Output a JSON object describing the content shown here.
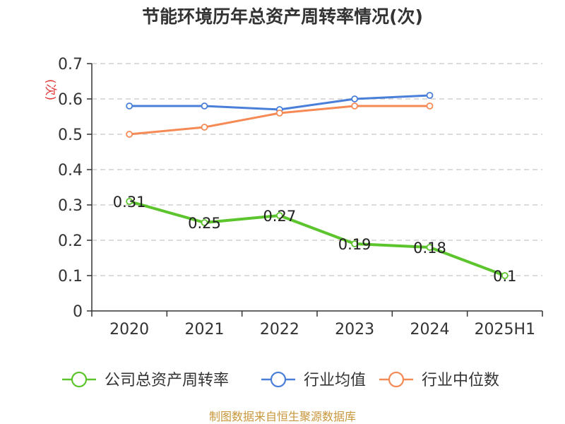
{
  "title": "节能环境历年总资产周转率情况(次)",
  "source": "制图数据来自恒生聚源数据库",
  "chart_data": {
    "type": "line",
    "title": "节能环境历年总资产周转率情况(次)",
    "ylabel": "(次)",
    "xlabel": "",
    "categories": [
      "2020",
      "2021",
      "2022",
      "2023",
      "2024",
      "2025H1"
    ],
    "ylim": [
      0,
      0.7
    ],
    "yticks": [
      "0",
      "0.1",
      "0.2",
      "0.3",
      "0.4",
      "0.5",
      "0.6",
      "0.7"
    ],
    "ytick_values": [
      0,
      0.1,
      0.2,
      0.3,
      0.4,
      0.5,
      0.6,
      0.7
    ],
    "grid": true,
    "legend_position": "bottom",
    "series": [
      {
        "name": "公司总资产周转率",
        "color": "#5cc42c",
        "values": [
          0.31,
          0.25,
          0.27,
          0.19,
          0.18,
          0.1
        ],
        "labels": [
          "0.31",
          "0.25",
          "0.27",
          "0.19",
          "0.18",
          "0.1"
        ]
      },
      {
        "name": "行业均值",
        "color": "#4a7fd9",
        "values": [
          0.58,
          0.58,
          0.57,
          0.6,
          0.61,
          null
        ]
      },
      {
        "name": "行业中位数",
        "color": "#f58a55",
        "values": [
          0.5,
          0.52,
          0.56,
          0.58,
          0.58,
          null
        ]
      }
    ]
  }
}
